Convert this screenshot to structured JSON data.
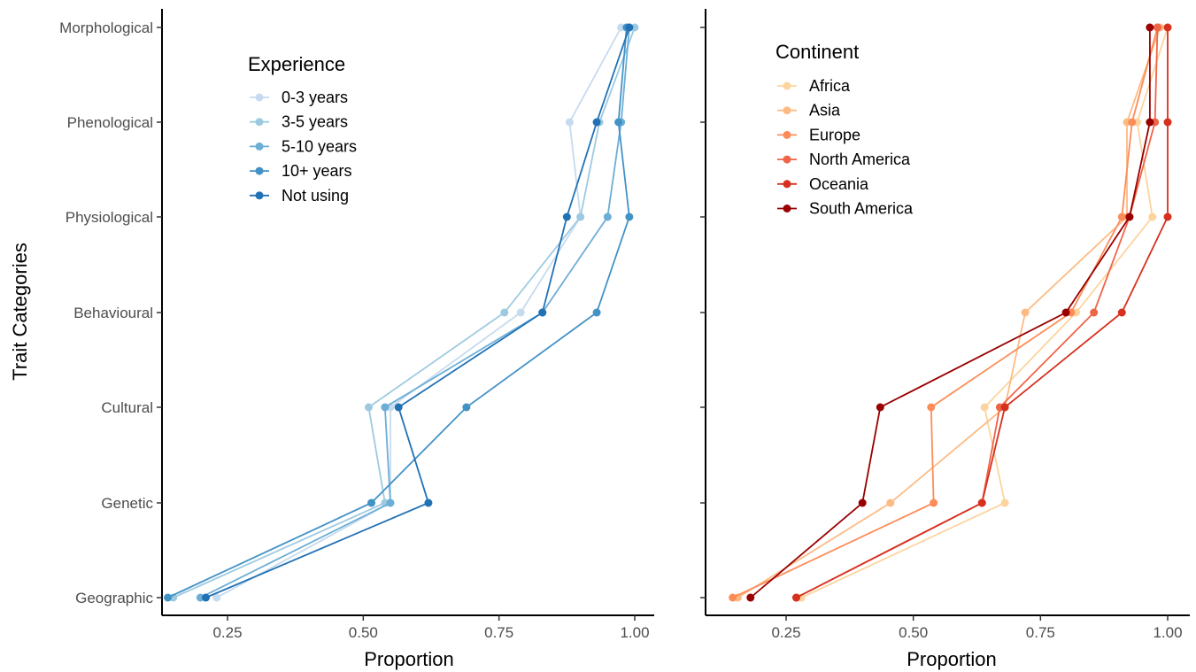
{
  "chart_data": [
    {
      "type": "line",
      "ylabel": "Trait Categories",
      "xlabel": "Proportion",
      "categories": [
        "Geographic",
        "Genetic",
        "Cultural",
        "Behavioural",
        "Physiological",
        "Phenological",
        "Morphological"
      ],
      "xlim": [
        0.13,
        1.04
      ],
      "xticks": [
        "0.25",
        "0.50",
        "0.75",
        "1.00"
      ],
      "grid": false,
      "legend": {
        "title": "Experience",
        "placement": "top-center",
        "entries": [
          "0-3 years",
          "3-5 years",
          "5-10 years",
          "10+ years",
          "Not using"
        ]
      },
      "series": [
        {
          "name": "0-3 years",
          "color": "#c6dbef",
          "values": [
            0.23,
            0.55,
            0.55,
            0.79,
            0.9,
            0.88,
            0.975
          ]
        },
        {
          "name": "3-5 years",
          "color": "#9ecae1",
          "values": [
            0.15,
            0.54,
            0.51,
            0.76,
            0.9,
            0.935,
            1.0
          ]
        },
        {
          "name": "5-10 years",
          "color": "#6baed6",
          "values": [
            0.2,
            0.55,
            0.54,
            0.83,
            0.95,
            0.975,
            0.99
          ]
        },
        {
          "name": "10+ years",
          "color": "#4292c6",
          "values": [
            0.14,
            0.515,
            0.69,
            0.93,
            0.99,
            0.97,
            0.985
          ]
        },
        {
          "name": "Not using",
          "color": "#2171b5",
          "values": [
            0.21,
            0.62,
            0.565,
            0.83,
            0.875,
            0.93,
            0.99
          ]
        }
      ]
    },
    {
      "type": "line",
      "ylabel": "",
      "xlabel": "Proportion",
      "categories": [
        "Geographic",
        "Genetic",
        "Cultural",
        "Behavioural",
        "Physiological",
        "Phenological",
        "Morphological"
      ],
      "xlim": [
        0.13,
        1.04
      ],
      "xticks": [
        "0.25",
        "0.50",
        "0.75",
        "1.00"
      ],
      "grid": false,
      "legend": {
        "title": "Continent",
        "placement": "top-center",
        "entries": [
          "Africa",
          "Asia",
          "Europe",
          "North America",
          "Oceania",
          "South America"
        ]
      },
      "series": [
        {
          "name": "Africa",
          "color": "#fdd49e",
          "values": [
            0.28,
            0.68,
            0.64,
            0.82,
            0.97,
            0.94,
            1.0
          ]
        },
        {
          "name": "Asia",
          "color": "#fdbb84",
          "values": [
            0.155,
            0.455,
            0.68,
            0.72,
            0.92,
            0.92,
            0.985
          ]
        },
        {
          "name": "Europe",
          "color": "#fc8d59",
          "values": [
            0.145,
            0.54,
            0.535,
            0.81,
            0.91,
            0.93,
            0.98
          ]
        },
        {
          "name": "North America",
          "color": "#ef6548",
          "values": [
            0.27,
            0.635,
            0.67,
            0.855,
            0.925,
            0.975,
            0.98
          ]
        },
        {
          "name": "Oceania",
          "color": "#d7301f",
          "values": [
            0.27,
            0.635,
            0.68,
            0.91,
            1.0,
            1.0,
            1.0
          ]
        },
        {
          "name": "South America",
          "color": "#990000",
          "values": [
            0.18,
            0.4,
            0.435,
            0.8,
            0.925,
            0.965,
            0.965
          ]
        }
      ]
    }
  ]
}
